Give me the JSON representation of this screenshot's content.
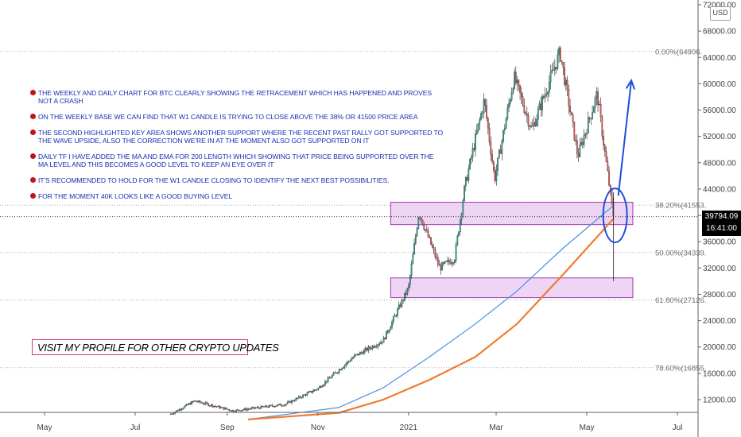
{
  "chart_data": {
    "type": "candlestick",
    "symbol_currency": "USD",
    "x_ticks": [
      "May",
      "Jul",
      "Sep",
      "Nov",
      "2021",
      "Mar",
      "May",
      "Jul"
    ],
    "y_ticks": [
      12000,
      16000,
      20000,
      24000,
      28000,
      32000,
      36000,
      40000,
      44000,
      48000,
      52000,
      56000,
      60000,
      64000,
      68000,
      72000
    ],
    "y_tick_labels": [
      "12000.00",
      "16000.00",
      "20000.00",
      "24000.00",
      "28000.00",
      "32000.00",
      "36000.00",
      "40000.00",
      "44000.00",
      "48000.00",
      "52000.00",
      "56000.00",
      "60000.00",
      "64000.00",
      "68000.00",
      "72000.00"
    ],
    "y_range": [
      9000,
      74000
    ],
    "price_path": [
      {
        "date": "2020-05-01",
        "price": 8800
      },
      {
        "date": "2020-06-10",
        "price": 9300
      },
      {
        "date": "2020-07-20",
        "price": 9200
      },
      {
        "date": "2020-08-10",
        "price": 11800
      },
      {
        "date": "2020-09-05",
        "price": 10300
      },
      {
        "date": "2020-10-10",
        "price": 11300
      },
      {
        "date": "2020-11-01",
        "price": 13700
      },
      {
        "date": "2020-11-25",
        "price": 18500
      },
      {
        "date": "2020-12-15",
        "price": 21000
      },
      {
        "date": "2021-01-01",
        "price": 29000
      },
      {
        "date": "2021-01-08",
        "price": 40500
      },
      {
        "date": "2021-01-22",
        "price": 32000
      },
      {
        "date": "2021-02-01",
        "price": 33500
      },
      {
        "date": "2021-02-08",
        "price": 44500
      },
      {
        "date": "2021-02-21",
        "price": 57500
      },
      {
        "date": "2021-02-28",
        "price": 45500
      },
      {
        "date": "2021-03-13",
        "price": 61000
      },
      {
        "date": "2021-03-25",
        "price": 53000
      },
      {
        "date": "2021-04-13",
        "price": 64800
      },
      {
        "date": "2021-04-25",
        "price": 49000
      },
      {
        "date": "2021-05-08",
        "price": 58500
      },
      {
        "date": "2021-05-13",
        "price": 49800
      },
      {
        "date": "2021-05-19",
        "price": 39794
      }
    ],
    "moving_averages": [
      {
        "name": "MA 200",
        "color": "#4a90e2",
        "points": [
          {
            "date": "2020-09-15",
            "price": 9000
          },
          {
            "date": "2020-11-15",
            "price": 10800
          },
          {
            "date": "2020-12-15",
            "price": 13800
          },
          {
            "date": "2021-01-15",
            "price": 18500
          },
          {
            "date": "2021-02-15",
            "price": 23500
          },
          {
            "date": "2021-03-15",
            "price": 28500
          },
          {
            "date": "2021-04-15",
            "price": 35000
          },
          {
            "date": "2021-05-19",
            "price": 41500
          }
        ]
      },
      {
        "name": "EMA 200",
        "color": "#f07a30",
        "points": [
          {
            "date": "2020-09-15",
            "price": 9000
          },
          {
            "date": "2020-11-15",
            "price": 10000
          },
          {
            "date": "2020-12-15",
            "price": 12000
          },
          {
            "date": "2021-01-15",
            "price": 15000
          },
          {
            "date": "2021-02-15",
            "price": 18500
          },
          {
            "date": "2021-03-15",
            "price": 23500
          },
          {
            "date": "2021-04-15",
            "price": 31000
          },
          {
            "date": "2021-05-19",
            "price": 39500
          }
        ]
      }
    ],
    "fib_levels": [
      {
        "label": "0.00%(64906.",
        "price": 64906
      },
      {
        "label": "38.20%(41553.",
        "price": 41553
      },
      {
        "label": "50.00%(34339.",
        "price": 34339
      },
      {
        "label": "61.80%(27126.",
        "price": 27126
      },
      {
        "label": "78.60%(16855.",
        "price": 16855
      }
    ],
    "key_areas": [
      {
        "date_from": "2021-01-01",
        "date_to": "2021-06-01",
        "price_high": 42000,
        "price_low": 38600
      },
      {
        "date_from": "2021-01-01",
        "date_to": "2021-06-01",
        "price_high": 30500,
        "price_low": 27500
      }
    ],
    "current_price": "39794.09",
    "countdown": "16:41:00",
    "colors": {
      "up": "#26a69a",
      "down": "#ef5350",
      "box_fill": "#e9c7f0",
      "box_stroke": "#a03bb0",
      "arrow": "#1f4fd8"
    }
  },
  "notes": [
    "THE WEEKLY AND DAILY CHART FOR BTC CLEARLY SHOWING THE RETRACEMENT WHICH HAS HAPPENED AND PROVES NOT A CRASH",
    "ON THE WEEKLY BASE WE CAN FIND THAT W1 CANDLE IS TRYING TO CLOSE ABOVE THE 38% OR 41500 PRICE AREA",
    "THE SECOND HIGHLIGHTED KEY AREA SHOWS ANOTHER SUPPORT WHERE THE RECENT PAST RALLY GOT SUPPORTED TO THE WAVE UPSIDE, ALSO THE CORRECTION WE'RE IN AT THE MOMENT ALSO GOT SUPPORTED ON IT",
    "DAILY TF I HAVE ADDED THE MA AND EMA FOR 200 LENGTH WHICH SHOWING THAT PRICE BEING SUPPORTED OVER THE MA LEVEL AND THIS BECOMES A GOOD LEVEL TO KEEP AN EYE OVER IT",
    "IT'S RECOMMENDED TO HOLD FOR THE W1 CANDLE CLOSING TO IDENTIFY THE NEXT BEST POSSIBILITIES.",
    "FOR THE MOMENT 40K LOOKS LIKE A GOOD BUYING LEVEL"
  ],
  "profile_note": "VISIT MY PROFILE FOR OTHER CRYPTO UPDATES"
}
